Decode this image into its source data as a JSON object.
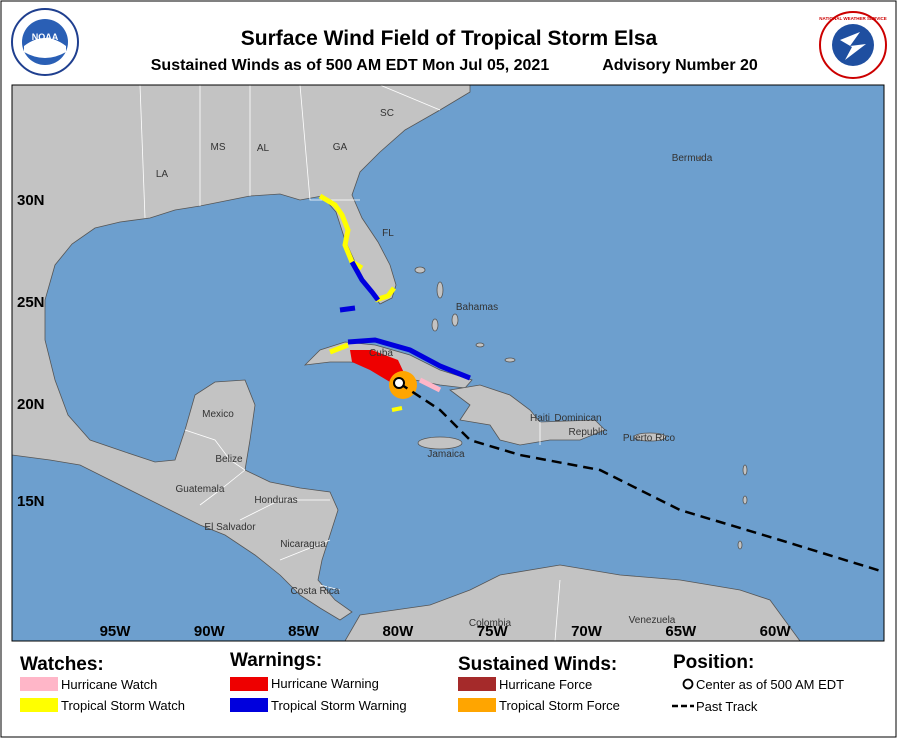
{
  "header": {
    "title": "Surface Wind Field of Tropical Storm Elsa",
    "subtitle": "Sustained Winds as of 500 AM EDT Mon Jul 05, 2021",
    "advisory": "Advisory Number 20",
    "logos": [
      "NOAA",
      "NATIONAL WEATHER SERVICE"
    ]
  },
  "map": {
    "latitude_labels": [
      "30N",
      "25N",
      "20N",
      "15N"
    ],
    "longitude_labels": [
      "95W",
      "90W",
      "85W",
      "80W",
      "75W",
      "70W",
      "65W",
      "60W"
    ],
    "place_labels": [
      "LA",
      "MS",
      "AL",
      "GA",
      "SC",
      "FL",
      "Bermuda",
      "Bahamas",
      "Cuba",
      "Haiti",
      "Dominican",
      "Republic",
      "Puerto Rico",
      "Jamaica",
      "Mexico",
      "Belize",
      "Guatemala",
      "Honduras",
      "El Salvador",
      "Nicaragua",
      "Costa Rica",
      "Colombia",
      "Venezuela"
    ]
  },
  "legend": {
    "watches": {
      "title": "Watches:",
      "items": [
        "Hurricane Watch",
        "Tropical Storm Watch"
      ]
    },
    "warnings": {
      "title": "Warnings:",
      "items": [
        "Hurricane Warning",
        "Tropical Storm Warning"
      ]
    },
    "winds": {
      "title": "Sustained Winds:",
      "items": [
        "Hurricane Force",
        "Tropical Storm Force"
      ]
    },
    "position": {
      "title": "Position:",
      "items": [
        "Center as of 500 AM EDT",
        "Past Track"
      ]
    }
  }
}
